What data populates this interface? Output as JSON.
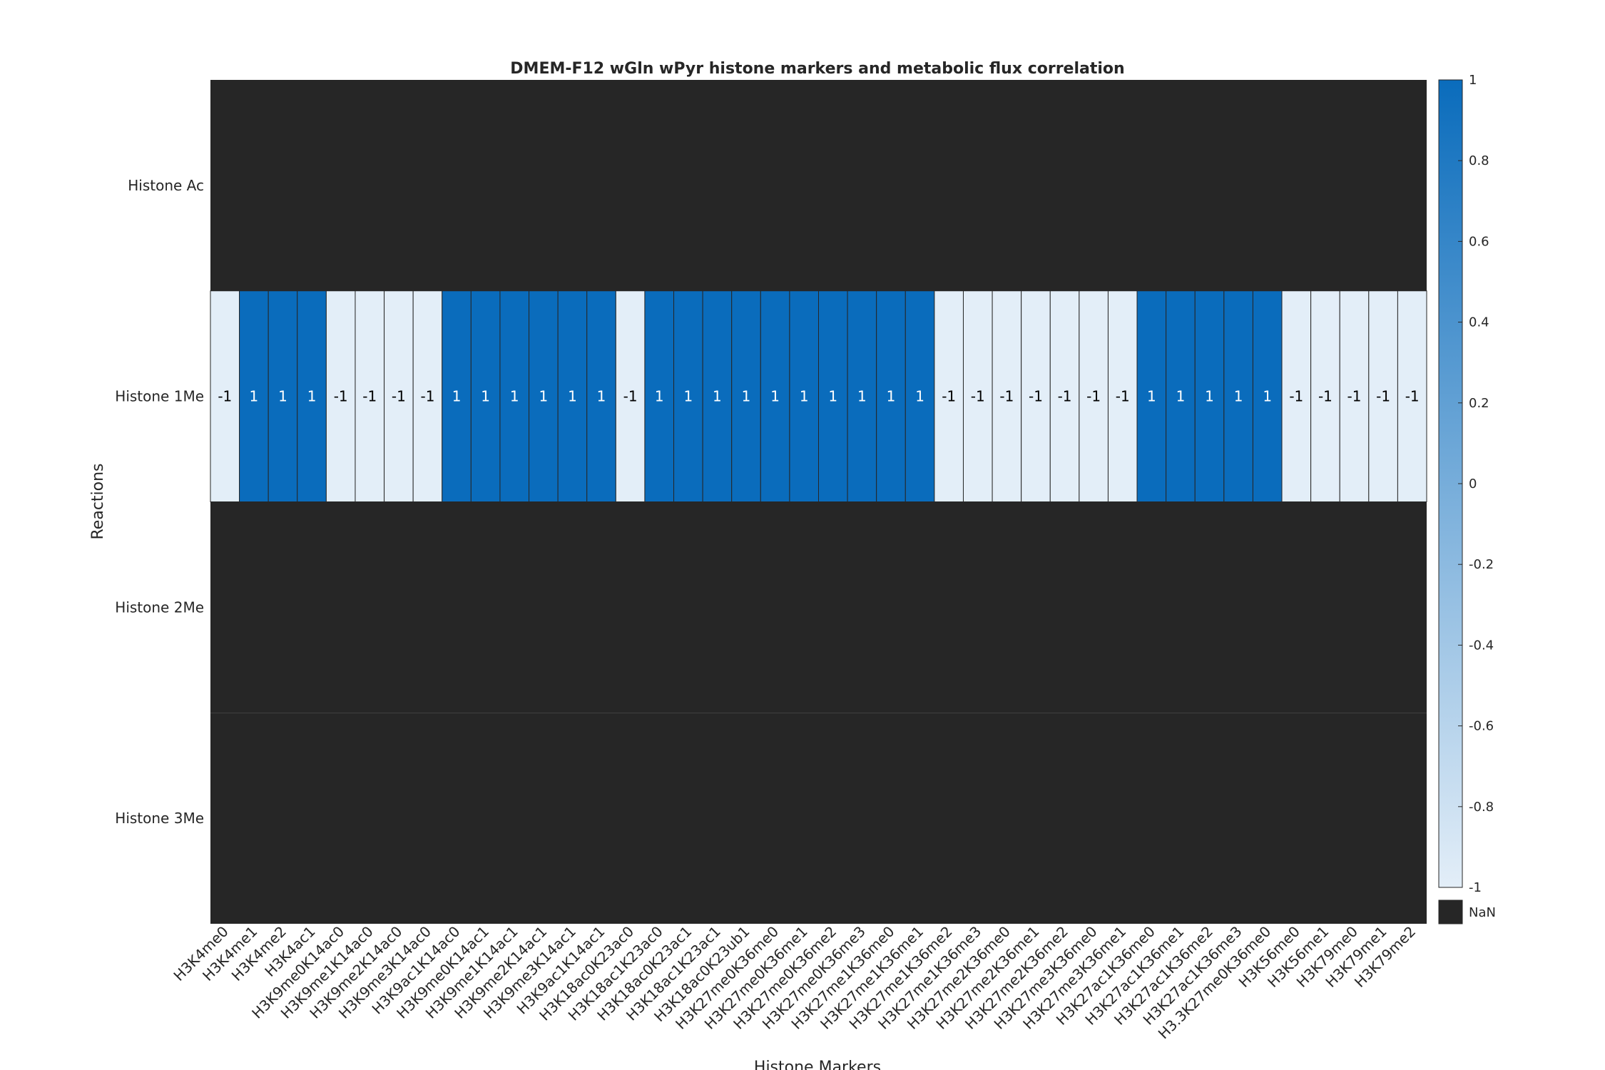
{
  "chart_data": {
    "type": "heatmap",
    "title": "DMEM-F12 wGln wPyr histone markers and metabolic flux correlation",
    "xlabel": "Histone Markers",
    "ylabel": "Reactions",
    "x_categories": [
      "H3K4me0",
      "H3K4me1",
      "H3K4me2",
      "H3K4ac1",
      "H3K9me0K14ac0",
      "H3K9me1K14ac0",
      "H3K9me2K14ac0",
      "H3K9me3K14ac0",
      "H3K9ac1K14ac0",
      "H3K9me0K14ac1",
      "H3K9me1K14ac1",
      "H3K9me2K14ac1",
      "H3K9me3K14ac1",
      "H3K9ac1K14ac1",
      "H3K18ac0K23ac0",
      "H3K18ac1K23ac0",
      "H3K18ac0K23ac1",
      "H3K18ac1K23ac1",
      "H3K18ac0K23ub1",
      "H3K27me0K36me0",
      "H3K27me0K36me1",
      "H3K27me0K36me2",
      "H3K27me0K36me3",
      "H3K27me1K36me0",
      "H3K27me1K36me1",
      "H3K27me1K36me2",
      "H3K27me1K36me3",
      "H3K27me2K36me0",
      "H3K27me2K36me1",
      "H3K27me2K36me2",
      "H3K27me3K36me0",
      "H3K27me3K36me1",
      "H3K27ac1K36me0",
      "H3K27ac1K36me1",
      "H3K27ac1K36me2",
      "H3K27ac1K36me3",
      "H3.3K27me0K36me0",
      "H3K56me0",
      "H3K56me1",
      "H3K79me0",
      "H3K79me1",
      "H3K79me2"
    ],
    "y_categories": [
      "Histone Ac",
      "Histone 1Me",
      "Histone 2Me",
      "Histone 3Me"
    ],
    "values": [
      [
        null,
        null,
        null,
        null,
        null,
        null,
        null,
        null,
        null,
        null,
        null,
        null,
        null,
        null,
        null,
        null,
        null,
        null,
        null,
        null,
        null,
        null,
        null,
        null,
        null,
        null,
        null,
        null,
        null,
        null,
        null,
        null,
        null,
        null,
        null,
        null,
        null,
        null,
        null,
        null,
        null,
        null
      ],
      [
        -1,
        1,
        1,
        1,
        -1,
        -1,
        -1,
        -1,
        1,
        1,
        1,
        1,
        1,
        1,
        -1,
        1,
        1,
        1,
        1,
        1,
        1,
        1,
        1,
        1,
        1,
        -1,
        -1,
        -1,
        -1,
        -1,
        -1,
        -1,
        1,
        1,
        1,
        1,
        1,
        -1,
        -1,
        -1,
        -1,
        -1
      ],
      [
        null,
        null,
        null,
        null,
        null,
        null,
        null,
        null,
        null,
        null,
        null,
        null,
        null,
        null,
        null,
        null,
        null,
        null,
        null,
        null,
        null,
        null,
        null,
        null,
        null,
        null,
        null,
        null,
        null,
        null,
        null,
        null,
        null,
        null,
        null,
        null,
        null,
        null,
        null,
        null,
        null,
        null
      ],
      [
        null,
        null,
        null,
        null,
        null,
        null,
        null,
        null,
        null,
        null,
        null,
        null,
        null,
        null,
        null,
        null,
        null,
        null,
        null,
        null,
        null,
        null,
        null,
        null,
        null,
        null,
        null,
        null,
        null,
        null,
        null,
        null,
        null,
        null,
        null,
        null,
        null,
        null,
        null,
        null,
        null,
        null
      ]
    ],
    "cell_labels": [
      [],
      [
        "-1",
        "1",
        "1",
        "1",
        "-1",
        "-1",
        "-1",
        "-1",
        "1",
        "1",
        "1",
        "1",
        "1",
        "1",
        "-1",
        "1",
        "1",
        "1",
        "1",
        "1",
        "1",
        "1",
        "1",
        "1",
        "1",
        "-1",
        "-1",
        "-1",
        "-1",
        "-1",
        "-1",
        "-1",
        "1",
        "1",
        "1",
        "1",
        "1",
        "-1",
        "-1",
        "-1",
        "-1",
        "-1"
      ],
      [],
      []
    ],
    "color_limits": [
      -1,
      1
    ],
    "colorbar": {
      "ticks": [
        1,
        0.8,
        0.6,
        0.4,
        0.2,
        0,
        -0.2,
        -0.4,
        -0.6,
        -0.8,
        -1
      ],
      "tick_labels": [
        "1",
        "0.8",
        "0.6",
        "0.4",
        "0.2",
        "0",
        "-0.2",
        "-0.4",
        "-0.6",
        "-0.8",
        "-1"
      ],
      "nan_label": "NaN"
    },
    "colors": {
      "high": "#0a6cbc",
      "low": "#e3eef8",
      "nan": "#262626",
      "cell_border": "#262626"
    },
    "grid": true,
    "legend": "colorbar-right"
  }
}
